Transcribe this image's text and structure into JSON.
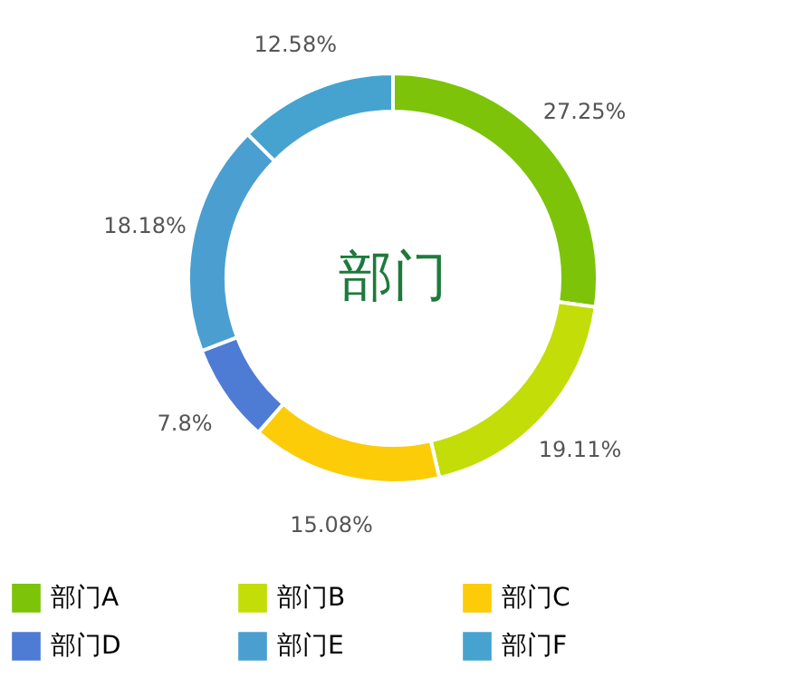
{
  "chart_data": {
    "type": "donut",
    "title": "部门",
    "categories": [
      "部门A",
      "部门B",
      "部门C",
      "部门D",
      "部门E",
      "部门F"
    ],
    "values": [
      27.25,
      19.11,
      15.08,
      7.8,
      18.18,
      12.58
    ],
    "value_labels": [
      "27.25%",
      "19.11%",
      "15.08%",
      "7.8%",
      "18.18%",
      "12.58%"
    ],
    "colors": [
      "#7cc30a",
      "#c3dd08",
      "#fccc08",
      "#4e7bd4",
      "#4a9fd0",
      "#46a3cf"
    ],
    "legend": "bottom"
  }
}
